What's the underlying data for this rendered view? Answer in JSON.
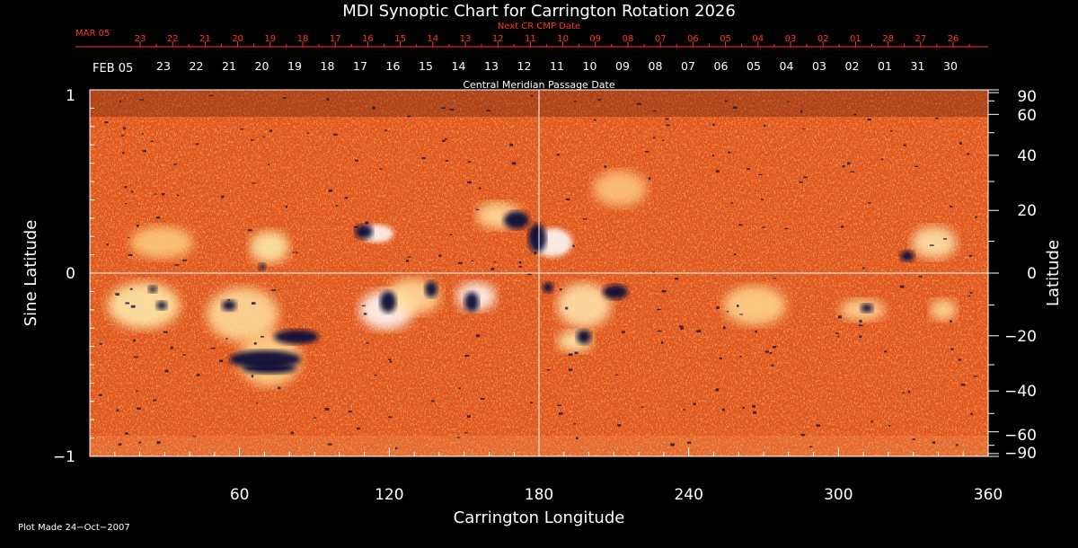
{
  "title": "MDI Synoptic Chart for Carrington Rotation 2026",
  "next_cr_label": "Next CR CMP Date",
  "next_cr_month": "MAR 05",
  "next_cr_days": [
    "23",
    "22",
    "21",
    "20",
    "19",
    "18",
    "17",
    "16",
    "15",
    "14",
    "13",
    "12",
    "11",
    "10",
    "09",
    "08",
    "07",
    "06",
    "05",
    "04",
    "03",
    "02",
    "01",
    "28",
    "27",
    "26"
  ],
  "cmp_month": "FEB 05",
  "cmp_days": [
    "23",
    "22",
    "21",
    "20",
    "19",
    "18",
    "17",
    "16",
    "15",
    "14",
    "13",
    "12",
    "11",
    "10",
    "09",
    "08",
    "07",
    "06",
    "05",
    "04",
    "03",
    "02",
    "01",
    "31",
    "30"
  ],
  "cmp_axis_label": "Central Meridian Passage Date",
  "x_axis": {
    "label": "Carrington Longitude",
    "ticks": [
      "60",
      "120",
      "180",
      "240",
      "300",
      "360"
    ],
    "range": [
      0,
      360
    ]
  },
  "y_left": {
    "label": "Sine Latitude",
    "ticks": [
      "1",
      "0",
      "−1"
    ],
    "range": [
      -1,
      1
    ]
  },
  "y_right": {
    "label": "Latitude",
    "ticks": [
      "90",
      "60",
      "40",
      "20",
      "0",
      "−20",
      "−40",
      "−60",
      "−90"
    ]
  },
  "footer": "Plot Made 24−Oct−2007",
  "colors": {
    "background": "#000000",
    "field": "#e8501a",
    "positive": "#ffffff",
    "negative": "#101040",
    "top_axis_red": "#ff3a1a"
  }
}
